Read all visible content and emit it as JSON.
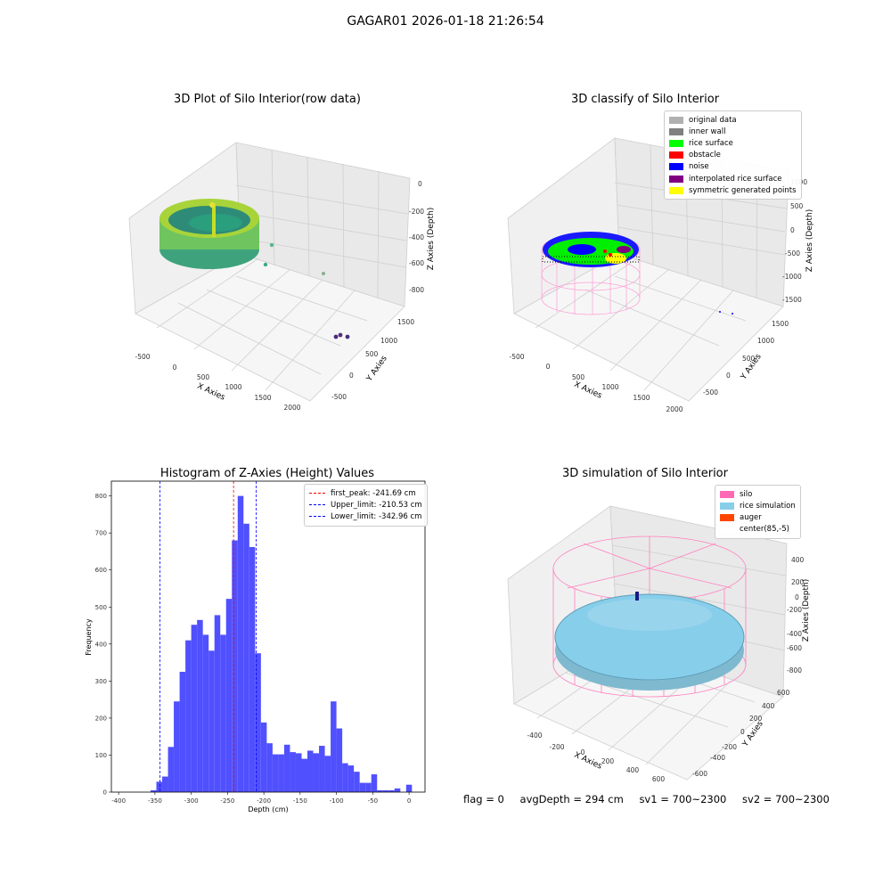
{
  "suptitle": "GAGAR01 2026-01-18 21:26:54",
  "panel1": {
    "title": "3D Plot of Silo Interior(row data)",
    "xlabel": "X Axies",
    "ylabel": "Y Axies",
    "zlabel": "Z Axies (Depth)",
    "xticks": [
      "-500",
      "0",
      "500",
      "1000",
      "1500",
      "2000"
    ],
    "yticks": [
      "-500",
      "0",
      "500",
      "1000",
      "1500"
    ],
    "zticks": [
      "0",
      "-200",
      "-400",
      "-600",
      "-800"
    ]
  },
  "panel2": {
    "title": "3D classify of Silo Interior",
    "xlabel": "X Axies",
    "ylabel": "Y Axies",
    "zlabel": "Z Axies (Depth)",
    "xticks": [
      "-500",
      "0",
      "500",
      "1000",
      "1500",
      "2000"
    ],
    "yticks": [
      "-500",
      "0",
      "500",
      "1000",
      "1500"
    ],
    "zticks": [
      "1000",
      "500",
      "0",
      "-500",
      "-1000",
      "-1500"
    ],
    "legend": [
      {
        "label": "original data",
        "color": "#b0b0b0"
      },
      {
        "label": "inner wall",
        "color": "#808080"
      },
      {
        "label": "rice surface",
        "color": "#00ff00"
      },
      {
        "label": "obstacle",
        "color": "#ff0000"
      },
      {
        "label": "noise",
        "color": "#0000ff"
      },
      {
        "label": "interpolated rice surface",
        "color": "#800080"
      },
      {
        "label": "symmetric generated points",
        "color": "#ffff00"
      }
    ]
  },
  "panel3": {
    "title": "Histogram of Z-Axies (Height) Values",
    "legend": [
      {
        "label": "first_peak: -241.69 cm",
        "color": "#ff0000"
      },
      {
        "label": "Upper_limit: -210.53 cm",
        "color": "#0000ff"
      },
      {
        "label": "Lower_limit: -342.96 cm",
        "color": "#0000ff"
      }
    ]
  },
  "panel4": {
    "title": "3D simulation of Silo Interior",
    "xlabel": "X Axies",
    "ylabel": "Y Axies",
    "zlabel": "Z Axies (Depth)",
    "xticks": [
      "-400",
      "-200",
      "0",
      "200",
      "400",
      "600"
    ],
    "yticks": [
      "-600",
      "-400",
      "-200",
      "0",
      "200",
      "400",
      "600"
    ],
    "zticks": [
      "400",
      "200",
      "0",
      "-200",
      "-400",
      "-600",
      "-800"
    ],
    "legend": [
      {
        "label": "silo",
        "color": "#ff69b4"
      },
      {
        "label": "rice simulation",
        "color": "#87ceeb"
      },
      {
        "label": "auger",
        "color": "#ff4500"
      },
      {
        "label": "center(85,-5)",
        "color": "#ffffff"
      }
    ]
  },
  "status": {
    "flag": "flag = 0",
    "avg_depth": "avgDepth = 294 cm",
    "sv1": "sv1 = 700~2300",
    "sv2": "sv2 = 700~2300"
  },
  "chart_data": [
    {
      "type": "bar",
      "title": "Histogram of Z-Axies (Height) Values",
      "xlabel": "Depth (cm)",
      "ylabel": "Frequency",
      "bar_color": "#5050ff",
      "xlim": [
        -410,
        22
      ],
      "ylim": [
        0,
        840
      ],
      "xticks": [
        -400,
        -350,
        -300,
        -250,
        -200,
        -150,
        -100,
        -50,
        0
      ],
      "yticks": [
        0,
        100,
        200,
        300,
        400,
        500,
        600,
        700,
        800
      ],
      "bin_width": 8,
      "bin_starts": [
        -356,
        -348,
        -340,
        -332,
        -324,
        -316,
        -308,
        -300,
        -292,
        -284,
        -276,
        -268,
        -260,
        -252,
        -244,
        -236,
        -228,
        -220,
        -212,
        -204,
        -196,
        -188,
        -180,
        -172,
        -164,
        -156,
        -148,
        -140,
        -132,
        -124,
        -116,
        -108,
        -100,
        -92,
        -84,
        -76,
        -68,
        -60,
        -52,
        -44,
        -36,
        -28,
        -20,
        -12,
        -4
      ],
      "values": [
        5,
        28,
        42,
        122,
        245,
        325,
        410,
        452,
        465,
        425,
        382,
        478,
        425,
        522,
        680,
        800,
        725,
        662,
        375,
        188,
        132,
        102,
        102,
        128,
        108,
        105,
        90,
        112,
        105,
        125,
        98,
        245,
        172,
        78,
        72,
        55,
        25,
        25,
        48,
        5,
        5,
        5,
        10,
        0,
        20
      ],
      "vlines": [
        {
          "label": "first_peak: -241.69 cm",
          "x": -241.69,
          "color": "#ff0000"
        },
        {
          "label": "Upper_limit: -210.53 cm",
          "x": -210.53,
          "color": "#0000ff"
        },
        {
          "label": "Lower_limit: -342.96 cm",
          "x": -342.96,
          "color": "#0000ff"
        }
      ]
    }
  ]
}
